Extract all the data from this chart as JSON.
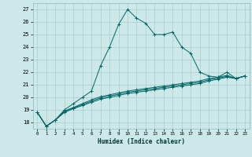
{
  "xlabel": "Humidex (Indice chaleur)",
  "background_color": "#cce8e8",
  "grid_color": "#aacccc",
  "line_color": "#006666",
  "xlim": [
    -0.5,
    23.5
  ],
  "ylim": [
    17.5,
    27.5
  ],
  "xticks": [
    0,
    1,
    2,
    3,
    4,
    5,
    6,
    7,
    8,
    9,
    10,
    11,
    12,
    13,
    14,
    15,
    16,
    17,
    18,
    19,
    20,
    21,
    22,
    23
  ],
  "yticks": [
    18,
    19,
    20,
    21,
    22,
    23,
    24,
    25,
    26,
    27
  ],
  "series": [
    [
      18.8,
      17.7,
      18.2,
      19.0,
      19.5,
      20.0,
      20.5,
      22.5,
      24.0,
      25.8,
      27.0,
      26.3,
      25.9,
      25.0,
      25.0,
      25.2,
      24.0,
      23.5,
      22.0,
      21.7,
      21.6,
      22.0,
      21.5,
      21.7
    ],
    [
      18.8,
      17.7,
      18.2,
      18.8,
      19.1,
      19.35,
      19.6,
      19.85,
      20.0,
      20.15,
      20.3,
      20.4,
      20.5,
      20.6,
      20.7,
      20.8,
      20.9,
      21.0,
      21.1,
      21.3,
      21.45,
      21.6,
      21.5,
      21.7
    ],
    [
      18.8,
      17.7,
      18.2,
      18.9,
      19.2,
      19.5,
      19.8,
      20.05,
      20.2,
      20.35,
      20.5,
      20.6,
      20.7,
      20.8,
      20.9,
      21.0,
      21.1,
      21.2,
      21.3,
      21.5,
      21.6,
      21.75,
      21.5,
      21.7
    ],
    [
      18.8,
      17.7,
      18.2,
      18.85,
      19.15,
      19.42,
      19.7,
      19.95,
      20.1,
      20.25,
      20.4,
      20.5,
      20.6,
      20.7,
      20.8,
      20.9,
      21.0,
      21.1,
      21.2,
      21.4,
      21.52,
      21.67,
      21.5,
      21.7
    ]
  ]
}
